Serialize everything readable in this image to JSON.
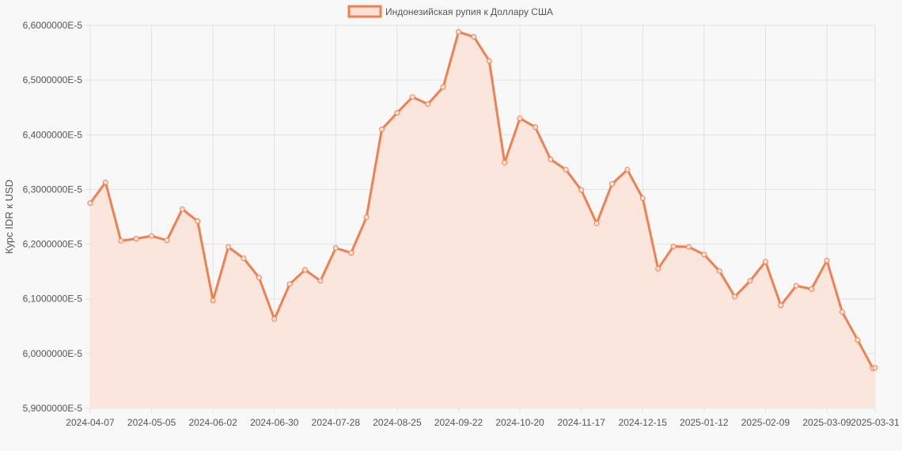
{
  "chart_data": {
    "type": "line",
    "title": "",
    "xlabel": "",
    "ylabel": "Курс IDR к USD",
    "legend": {
      "position": "top-center",
      "entries": [
        "Индонезийская рупия к Доллару США"
      ]
    },
    "grid": true,
    "line_color": "#f08050",
    "fill_color": "#fbe6dd",
    "ylim": [
      5.9e-05,
      6.6e-05
    ],
    "y_ticks": [
      "5,9000000E-5",
      "6,0000000E-5",
      "6,1000000E-5",
      "6,2000000E-5",
      "6,3000000E-5",
      "6,4000000E-5",
      "6,5000000E-5",
      "6,6000000E-5"
    ],
    "x_ticks": [
      "2024-04-07",
      "2024-05-05",
      "2024-06-02",
      "2024-06-30",
      "2024-07-28",
      "2024-08-25",
      "2024-09-22",
      "2024-10-20",
      "2024-11-17",
      "2024-12-15",
      "2025-01-12",
      "2025-02-09",
      "2025-03-09",
      "2025-03-31"
    ],
    "x": [
      "2024-04-07",
      "2024-04-14",
      "2024-04-21",
      "2024-04-28",
      "2024-05-05",
      "2024-05-12",
      "2024-05-19",
      "2024-05-26",
      "2024-06-02",
      "2024-06-09",
      "2024-06-16",
      "2024-06-23",
      "2024-06-30",
      "2024-07-07",
      "2024-07-14",
      "2024-07-21",
      "2024-07-28",
      "2024-08-04",
      "2024-08-11",
      "2024-08-18",
      "2024-08-25",
      "2024-09-01",
      "2024-09-08",
      "2024-09-15",
      "2024-09-22",
      "2024-09-29",
      "2024-10-06",
      "2024-10-13",
      "2024-10-20",
      "2024-10-27",
      "2024-11-03",
      "2024-11-10",
      "2024-11-17",
      "2024-11-24",
      "2024-12-01",
      "2024-12-08",
      "2024-12-15",
      "2024-12-22",
      "2024-12-29",
      "2025-01-05",
      "2025-01-12",
      "2025-01-19",
      "2025-01-26",
      "2025-02-02",
      "2025-02-09",
      "2025-02-16",
      "2025-02-23",
      "2025-03-02",
      "2025-03-09",
      "2025-03-16",
      "2025-03-23",
      "2025-03-30",
      "2025-03-31"
    ],
    "series": [
      {
        "name": "Индонезийская рупия к Доллару США",
        "values": [
          6.275e-05,
          6.313e-05,
          6.206e-05,
          6.21e-05,
          6.215e-05,
          6.207e-05,
          6.264e-05,
          6.242e-05,
          6.097e-05,
          6.195e-05,
          6.174e-05,
          6.139e-05,
          6.063e-05,
          6.127e-05,
          6.153e-05,
          6.133e-05,
          6.193e-05,
          6.184e-05,
          6.249e-05,
          6.41e-05,
          6.44e-05,
          6.469e-05,
          6.456e-05,
          6.487e-05,
          6.588e-05,
          6.579e-05,
          6.535e-05,
          6.349e-05,
          6.43e-05,
          6.414e-05,
          6.355e-05,
          6.336e-05,
          6.299e-05,
          6.238e-05,
          6.31e-05,
          6.336e-05,
          6.284e-05,
          6.155e-05,
          6.196e-05,
          6.195e-05,
          6.181e-05,
          6.151e-05,
          6.104e-05,
          6.133e-05,
          6.168e-05,
          6.088e-05,
          6.124e-05,
          6.118e-05,
          6.17e-05,
          6.076e-05,
          6.025e-05,
          5.973e-05,
          5.974e-05
        ]
      }
    ]
  }
}
